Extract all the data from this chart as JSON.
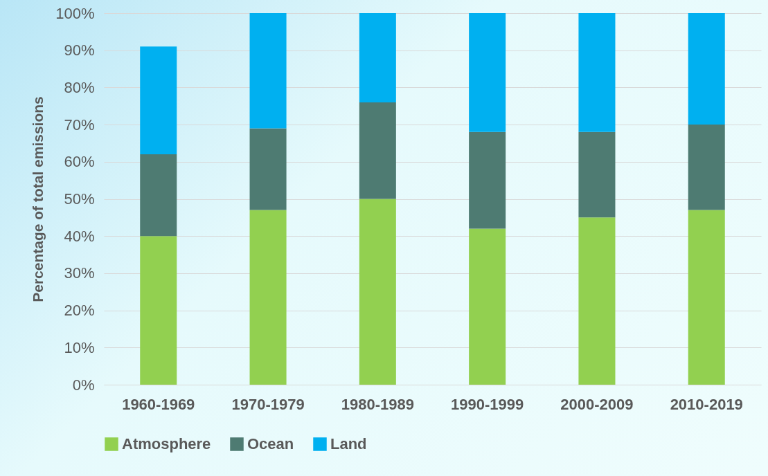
{
  "chart_data": {
    "type": "bar",
    "stacked": true,
    "ylabel": "Percentage of total emissions",
    "categories": [
      "1960-1969",
      "1970-1979",
      "1980-1989",
      "1990-1999",
      "2000-2009",
      "2010-2019"
    ],
    "series": [
      {
        "name": "Atmosphere",
        "color": "#92d050",
        "values": [
          40,
          47,
          50,
          42,
          45,
          47
        ]
      },
      {
        "name": "Ocean",
        "color": "#4e7b72",
        "values": [
          22,
          22,
          26,
          26,
          23,
          23
        ]
      },
      {
        "name": "Land",
        "color": "#00b0f0",
        "values": [
          29,
          31,
          24,
          32,
          32,
          30
        ]
      }
    ],
    "ylim": [
      0,
      100
    ],
    "yticks": [
      {
        "value": 0,
        "label": "0%"
      },
      {
        "value": 10,
        "label": "10%"
      },
      {
        "value": 20,
        "label": "20%"
      },
      {
        "value": 30,
        "label": "30%"
      },
      {
        "value": 40,
        "label": "40%"
      },
      {
        "value": 50,
        "label": "50%"
      },
      {
        "value": 60,
        "label": "60%"
      },
      {
        "value": 70,
        "label": "70%"
      },
      {
        "value": 80,
        "label": "80%"
      },
      {
        "value": 90,
        "label": "90%"
      },
      {
        "value": 100,
        "label": "100%"
      }
    ],
    "grid": "y",
    "legend": "bottom"
  }
}
